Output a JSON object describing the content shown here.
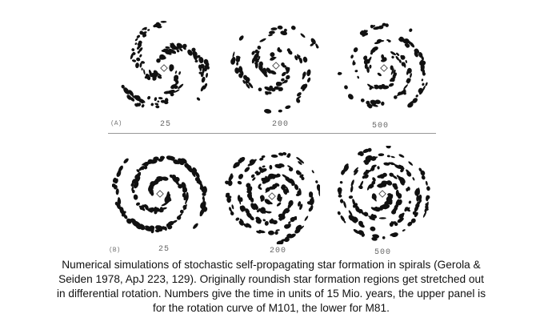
{
  "panel_a": {
    "label": "(A)",
    "times": [
      "25",
      "200",
      "500"
    ]
  },
  "panel_b": {
    "label": "(B)",
    "times": [
      "25",
      "200",
      "500"
    ]
  },
  "caption": {
    "lines": [
      "Numerical simulations of stochastic self-propagating star formation in spirals (Gerola &",
      "Seiden 1978, ApJ 223, 129). Originally roundish star formation regions get stretched out",
      "in differential rotation. Numbers give the time in units of 15 Mio. years, the upper panel is",
      "for the rotation curve of M101, the lower for M81."
    ]
  },
  "colors": {
    "ink": "#111111",
    "caption": "#111111"
  }
}
